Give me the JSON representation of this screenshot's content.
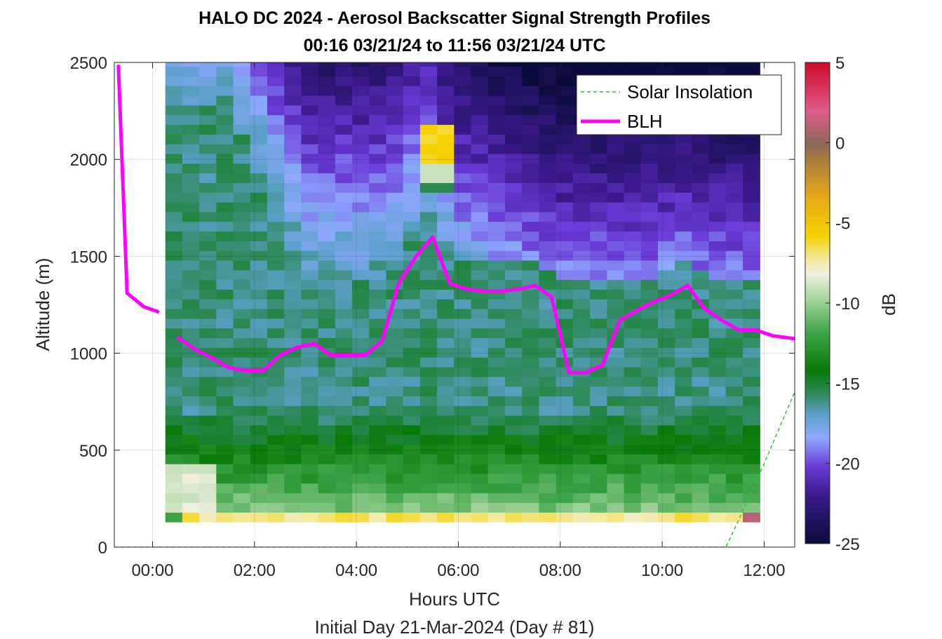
{
  "chart_data": {
    "type": "heatmap",
    "title": "HALO DC 2024 - Aerosol Backscatter Signal Strength Profiles",
    "subtitle": "00:16 03/21/24 to 11:56 03/21/24  UTC",
    "xlabel": "Hours UTC",
    "xlabel2": "Initial Day 21-Mar-2024 (Day # 81)",
    "ylabel": "Altitude (m)",
    "xlim": [
      -0.75,
      12.6
    ],
    "ylim": [
      0,
      2500
    ],
    "x_ticks": [
      0,
      2,
      4,
      6,
      8,
      10,
      12
    ],
    "x_tick_labels": [
      "00:00",
      "02:00",
      "04:00",
      "06:00",
      "08:00",
      "10:00",
      "12:00"
    ],
    "y_ticks": [
      0,
      500,
      1000,
      1500,
      2000,
      2500
    ],
    "y_tick_labels": [
      "0",
      "500",
      "1000",
      "1500",
      "2000",
      "2500"
    ],
    "grid": true,
    "legend_position": "top-right",
    "colorbar": {
      "label": "dB",
      "range": [
        -25,
        5
      ],
      "ticks": [
        5,
        0,
        -5,
        -10,
        -15,
        -20,
        -25
      ],
      "tick_labels": [
        "5",
        "0",
        "-5",
        "-10",
        "-15",
        "-20",
        "-25"
      ]
    },
    "heatmap": {
      "x_start": 0.25,
      "x_end": 11.9,
      "x_step": 0.3333,
      "y_start": 130,
      "y_end": 2500,
      "y_step": 50,
      "value_units": "dB",
      "columns": 35,
      "rows": 48
    },
    "series": [
      {
        "name": "Solar Insolation",
        "color": "#22cc22",
        "style": "dashed",
        "x": [
          -0.75,
          11.25,
          11.5,
          12.0,
          12.6
        ],
        "y": [
          0,
          0,
          140,
          430,
          800
        ]
      },
      {
        "name": "BLH",
        "color": "#ff00ff",
        "style": "solid",
        "segments": [
          {
            "x": [
              -0.67,
              -0.5,
              -0.17,
              0.1
            ],
            "y": [
              2480,
              1310,
              1240,
              1215
            ]
          },
          {
            "x": [
              0.5,
              0.83,
              1.17,
              1.5,
              1.83,
              2.17,
              2.5,
              2.83,
              3.17,
              3.5,
              3.83,
              4.17,
              4.5,
              4.83,
              5.17,
              5.5,
              5.83,
              6.17,
              6.5,
              6.83,
              7.17,
              7.5,
              7.83,
              8.17,
              8.5,
              8.83,
              9.17,
              9.5,
              9.83,
              10.17,
              10.5,
              10.83,
              11.17,
              11.5,
              11.83,
              12.17,
              12.6
            ],
            "y": [
              1080,
              1020,
              975,
              925,
              910,
              910,
              990,
              1030,
              1050,
              990,
              990,
              990,
              1060,
              1360,
              1500,
              1600,
              1360,
              1330,
              1320,
              1320,
              1330,
              1350,
              1290,
              900,
              900,
              940,
              1170,
              1220,
              1265,
              1300,
              1350,
              1230,
              1170,
              1120,
              1120,
              1090,
              1075
            ]
          }
        ]
      }
    ]
  }
}
